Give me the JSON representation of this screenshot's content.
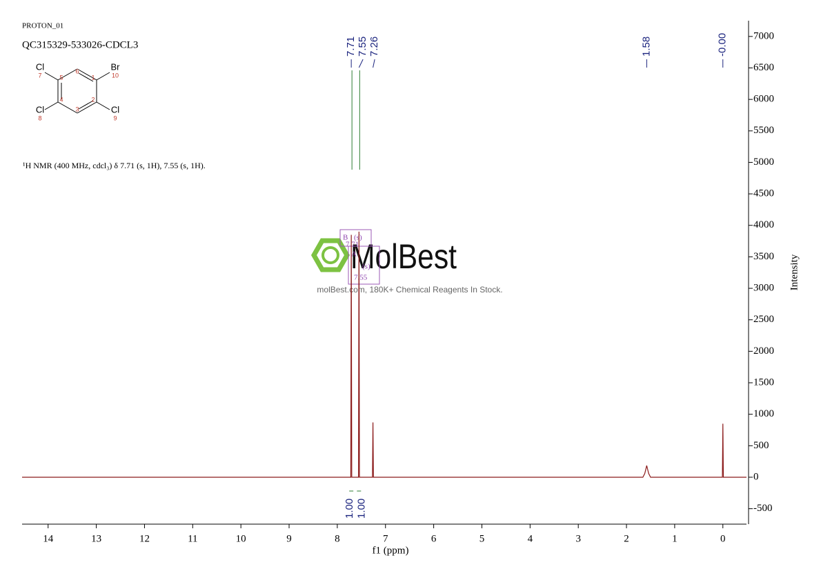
{
  "chart_data": {
    "type": "line",
    "header": {
      "experiment": "PROTON_01",
      "sample": "QC315329-533026-CDCL3"
    },
    "description": "¹H NMR (400 MHz, cdcl₃) δ 7.71 (s, 1H), 7.55 (s, 1H).",
    "molecule": {
      "atoms": [
        {
          "symbol": "Cl",
          "index": "7"
        },
        {
          "symbol": "Br",
          "index": "10"
        },
        {
          "symbol": "Cl",
          "index": "8"
        },
        {
          "symbol": "Cl",
          "index": "9"
        }
      ],
      "ring_numbers": [
        "1",
        "2",
        "3",
        "4",
        "5",
        "6"
      ]
    },
    "xlabel": "f1 (ppm)",
    "ylabel": "Intensity",
    "xlim": [
      14.54,
      -0.49
    ],
    "ylim": [
      -745,
      7250
    ],
    "xticks": [
      14,
      13,
      12,
      11,
      10,
      9,
      8,
      7,
      6,
      5,
      4,
      3,
      2,
      1,
      0
    ],
    "yticks": [
      -500,
      0,
      500,
      1000,
      1500,
      2000,
      2500,
      3000,
      3500,
      4000,
      4500,
      5000,
      5500,
      6000,
      6500,
      7000
    ],
    "series": [
      {
        "name": "spectrum",
        "color": "#8b1a1a",
        "x": [
          14.54,
          7.75,
          7.72,
          7.71,
          7.7,
          7.56,
          7.55,
          7.54,
          7.27,
          7.26,
          7.25,
          1.66,
          1.62,
          1.58,
          1.54,
          1.5,
          0.01,
          0.0,
          -0.01,
          -0.49
        ],
        "values": [
          0,
          0,
          0,
          3850,
          0,
          0,
          3900,
          0,
          0,
          870,
          0,
          0,
          60,
          185,
          60,
          0,
          0,
          850,
          0,
          0
        ]
      }
    ],
    "peak_labels": [
      {
        "value": 7.71,
        "label": "7.71"
      },
      {
        "value": 7.55,
        "label": "7.55"
      },
      {
        "value": 7.26,
        "label": "7.26"
      },
      {
        "value": 1.58,
        "label": "1.58"
      },
      {
        "value": 0,
        "label": "-0.00"
      }
    ],
    "integrals": [
      {
        "shift": 7.71,
        "value": 1,
        "label": "1.00"
      },
      {
        "shift": 7.55,
        "value": 1,
        "label": "1.00"
      }
    ],
    "multiplets": [
      {
        "name": "B",
        "shape": "(s)",
        "shift": "7.71"
      },
      {
        "name": "A",
        "shape": "(s)",
        "shift": "7.55"
      }
    ],
    "watermark": {
      "brand": "MolBest",
      "tagline": "molBest.com, 180K+ Chemical Reagents In Stock."
    }
  }
}
